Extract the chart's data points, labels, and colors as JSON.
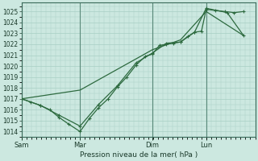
{
  "background_color": "#cce8e0",
  "grid_color": "#a8cfc4",
  "line_color": "#2d6a3f",
  "marker_color": "#2d6a3f",
  "ylabel": "Pression niveau de la mer( hPa )",
  "ylim": [
    1013.5,
    1025.8
  ],
  "yticks": [
    1014,
    1015,
    1016,
    1017,
    1018,
    1019,
    1020,
    1021,
    1022,
    1023,
    1024,
    1025
  ],
  "xtick_labels": [
    "Sam",
    "Mar",
    "Dim",
    "Lun"
  ],
  "xtick_positions": [
    0,
    25,
    56,
    79
  ],
  "vline_positions": [
    0,
    25,
    56,
    79
  ],
  "xlim": [
    0,
    100
  ],
  "series1_x": [
    0,
    4,
    8,
    12,
    16,
    20,
    25,
    29,
    33,
    37,
    41,
    45,
    49,
    53,
    56,
    59,
    62,
    65,
    68,
    71,
    74,
    77,
    79,
    83,
    87,
    91,
    95
  ],
  "series1_y": [
    1017.0,
    1016.7,
    1016.4,
    1016.0,
    1015.3,
    1014.7,
    1014.0,
    1015.2,
    1016.2,
    1017.0,
    1018.1,
    1019.0,
    1020.1,
    1020.9,
    1021.1,
    1021.9,
    1022.0,
    1022.1,
    1022.2,
    1022.7,
    1023.1,
    1023.2,
    1025.2,
    1025.1,
    1025.0,
    1024.9,
    1025.0
  ],
  "series2_x": [
    0,
    8,
    16,
    25,
    33,
    41,
    49,
    56,
    62,
    68,
    74,
    79,
    88,
    95
  ],
  "series2_y": [
    1017.0,
    1016.4,
    1015.5,
    1014.5,
    1016.5,
    1018.2,
    1020.3,
    1021.2,
    1022.1,
    1022.2,
    1023.1,
    1025.3,
    1024.9,
    1022.8
  ],
  "series3_x": [
    0,
    25,
    56,
    68,
    79,
    95
  ],
  "series3_y": [
    1017.0,
    1017.8,
    1021.5,
    1022.4,
    1025.0,
    1022.8
  ]
}
